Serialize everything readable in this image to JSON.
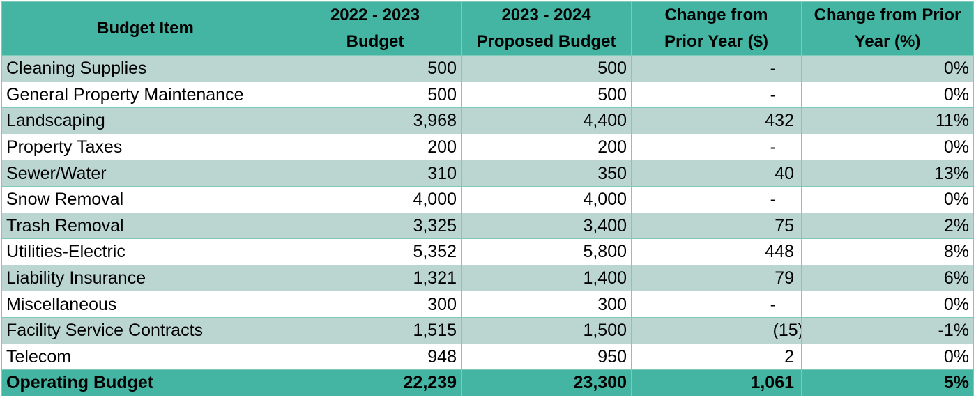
{
  "table": {
    "headers": [
      [
        "Budget Item"
      ],
      [
        "2022 - 2023",
        "Budget"
      ],
      [
        "2023 - 2024",
        "Proposed Budget"
      ],
      [
        "Change from",
        "Prior Year ($)"
      ],
      [
        "Change from Prior",
        "Year (%)"
      ]
    ],
    "rows": [
      {
        "item": "Cleaning Supplies",
        "budget_2022": "500",
        "budget_2023": "500",
        "change_dollar": "-",
        "change_pct": "0%"
      },
      {
        "item": "General Property Maintenance",
        "budget_2022": "500",
        "budget_2023": "500",
        "change_dollar": "-",
        "change_pct": "0%"
      },
      {
        "item": "Landscaping",
        "budget_2022": "3,968",
        "budget_2023": "4,400",
        "change_dollar": "432",
        "change_pct": "11%"
      },
      {
        "item": "Property Taxes",
        "budget_2022": "200",
        "budget_2023": "200",
        "change_dollar": "-",
        "change_pct": "0%"
      },
      {
        "item": "Sewer/Water",
        "budget_2022": "310",
        "budget_2023": "350",
        "change_dollar": "40",
        "change_pct": "13%"
      },
      {
        "item": "Snow Removal",
        "budget_2022": "4,000",
        "budget_2023": "4,000",
        "change_dollar": "-",
        "change_pct": "0%"
      },
      {
        "item": "Trash Removal",
        "budget_2022": "3,325",
        "budget_2023": "3,400",
        "change_dollar": "75",
        "change_pct": "2%"
      },
      {
        "item": "Utilities-Electric",
        "budget_2022": "5,352",
        "budget_2023": "5,800",
        "change_dollar": "448",
        "change_pct": "8%"
      },
      {
        "item": "Liability Insurance",
        "budget_2022": "1,321",
        "budget_2023": "1,400",
        "change_dollar": "79",
        "change_pct": "6%"
      },
      {
        "item": "Miscellaneous",
        "budget_2022": "300",
        "budget_2023": "300",
        "change_dollar": "-",
        "change_pct": "0%"
      },
      {
        "item": "Facility Service Contracts",
        "budget_2022": "1,515",
        "budget_2023": "1,500",
        "change_dollar": "(15)",
        "change_pct": "-1%"
      },
      {
        "item": "Telecom",
        "budget_2022": "948",
        "budget_2023": "950",
        "change_dollar": "2",
        "change_pct": "0%"
      }
    ],
    "total": {
      "item": "Operating Budget",
      "budget_2022": "22,239",
      "budget_2023": "23,300",
      "change_dollar": "1,061",
      "change_pct": "5%"
    }
  },
  "colors": {
    "header_bg": "#45b5a3",
    "band_bg": "#bbd6d1",
    "row_bg": "#ffffff",
    "border": "#7fc9bb"
  }
}
